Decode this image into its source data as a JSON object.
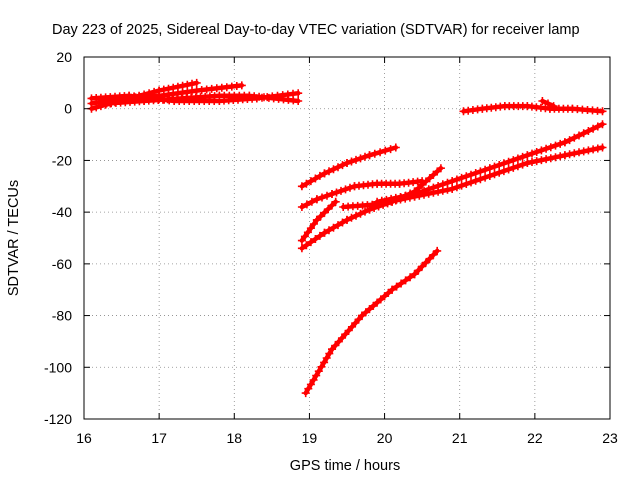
{
  "chart_data": {
    "type": "scatter",
    "title": "Day 223 of 2025, Sidereal Day-to-day VTEC variation (SDTVAR) for receiver lamp",
    "xlabel": "GPS time / hours",
    "ylabel": "SDTVAR / TECUs",
    "xlim": [
      16,
      23
    ],
    "ylim": [
      -120,
      20
    ],
    "x_ticks": [
      16,
      17,
      18,
      19,
      20,
      21,
      22,
      23
    ],
    "y_ticks": [
      20,
      0,
      -20,
      -40,
      -60,
      -80,
      -100,
      -120
    ],
    "x_tick_labels": [
      "16",
      "17",
      "18",
      "19",
      "20",
      "21",
      "22",
      "23"
    ],
    "y_tick_labels": [
      "20",
      "0",
      "-20",
      "-40",
      "-60",
      "-80",
      "-100",
      "-120"
    ],
    "grid": true,
    "legend": "none",
    "marker": "plus",
    "color": "#ff0000",
    "series": [
      {
        "x": [
          16.1,
          16.6,
          17.0,
          17.5
        ],
        "y": [
          0,
          4,
          7,
          10
        ]
      },
      {
        "x": [
          16.1,
          16.5,
          17.0,
          17.5,
          18.1
        ],
        "y": [
          2,
          4,
          5,
          7,
          9
        ]
      },
      {
        "x": [
          16.1,
          16.6,
          17.2,
          17.8,
          18.3,
          18.85
        ],
        "y": [
          4,
          5,
          3,
          3,
          4,
          6
        ]
      },
      {
        "x": [
          16.3,
          16.8,
          17.3,
          17.8,
          18.2,
          18.85
        ],
        "y": [
          2,
          3,
          4,
          5,
          5,
          3
        ]
      },
      {
        "x": [
          18.9,
          19.2,
          19.5,
          19.8,
          20.15
        ],
        "y": [
          -30,
          -25,
          -21,
          -18,
          -15
        ]
      },
      {
        "x": [
          18.9,
          19.1,
          19.3,
          19.6,
          19.9,
          20.2,
          20.5
        ],
        "y": [
          -38,
          -35,
          -33,
          -30,
          -29,
          -29,
          -28
        ]
      },
      {
        "x": [
          18.9,
          19.1,
          19.35
        ],
        "y": [
          -51,
          -43,
          -36
        ]
      },
      {
        "x": [
          18.9,
          19.2,
          19.5,
          19.8,
          20.1,
          20.4,
          20.75
        ],
        "y": [
          -54,
          -48,
          -43,
          -39,
          -36,
          -32,
          -23
        ]
      },
      {
        "x": [
          19.45,
          19.9,
          20.4,
          20.9,
          21.4,
          21.9,
          22.4,
          22.9
        ],
        "y": [
          -38,
          -37,
          -34,
          -31,
          -26,
          -21,
          -18,
          -15
        ]
      },
      {
        "x": [
          19.9,
          20.4,
          20.9,
          21.4,
          21.9,
          22.4,
          22.9
        ],
        "y": [
          -36,
          -33,
          -28,
          -23,
          -18,
          -13,
          -6
        ]
      },
      {
        "x": [
          18.95,
          19.3,
          19.7,
          20.1,
          20.4,
          20.7
        ],
        "y": [
          -110,
          -93,
          -80,
          -70,
          -64,
          -55
        ]
      },
      {
        "x": [
          21.05,
          21.3,
          21.6,
          21.9,
          22.2,
          22.5,
          22.9
        ],
        "y": [
          -1,
          0,
          1,
          1,
          0,
          0,
          -1
        ]
      },
      {
        "x": [
          22.1,
          22.25
        ],
        "y": [
          3,
          1
        ]
      }
    ]
  }
}
